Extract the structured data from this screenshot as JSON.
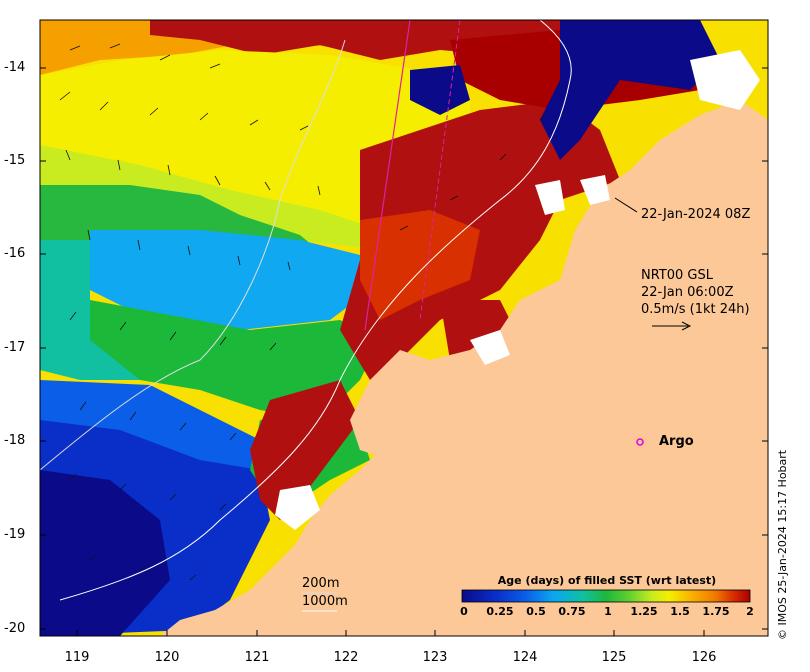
{
  "map": {
    "lat_ticks": [
      "-14",
      "-15",
      "-16",
      "-17",
      "-18",
      "-19",
      "-20"
    ],
    "lon_ticks": [
      "119",
      "120",
      "121",
      "122",
      "123",
      "124",
      "125",
      "126"
    ],
    "pass_time": "22-Jan-2024 08Z",
    "currents": {
      "line1": "NRT00 GSL",
      "line2": "22-Jan 06:00Z",
      "line3": "0.5m/s (1kt 24h)"
    },
    "argo_label": "Argo",
    "bathymetry": {
      "contour_200": "200m",
      "contour_1000": "1000m"
    },
    "colorbar": {
      "title": "Age (days) of filled SST (wrt latest)",
      "labels": [
        "0",
        "0.25",
        "0.5",
        "0.75",
        "1",
        "1.25",
        "1.5",
        "1.75",
        "2"
      ],
      "colors": [
        "#0b0b8a",
        "#0a2fc8",
        "#0a5ee8",
        "#0aa8f0",
        "#10c0a0",
        "#1cb83a",
        "#60d030",
        "#c8ec20",
        "#f6ee00",
        "#f8b000",
        "#f07800",
        "#d83000",
        "#a80000"
      ]
    },
    "credit": "© IMOS 25-Jan-2024 15:17 Hobart",
    "colors": {
      "land": "#fcc898",
      "argo": "#e000e0",
      "altimeter_track": "#e020a0"
    }
  }
}
